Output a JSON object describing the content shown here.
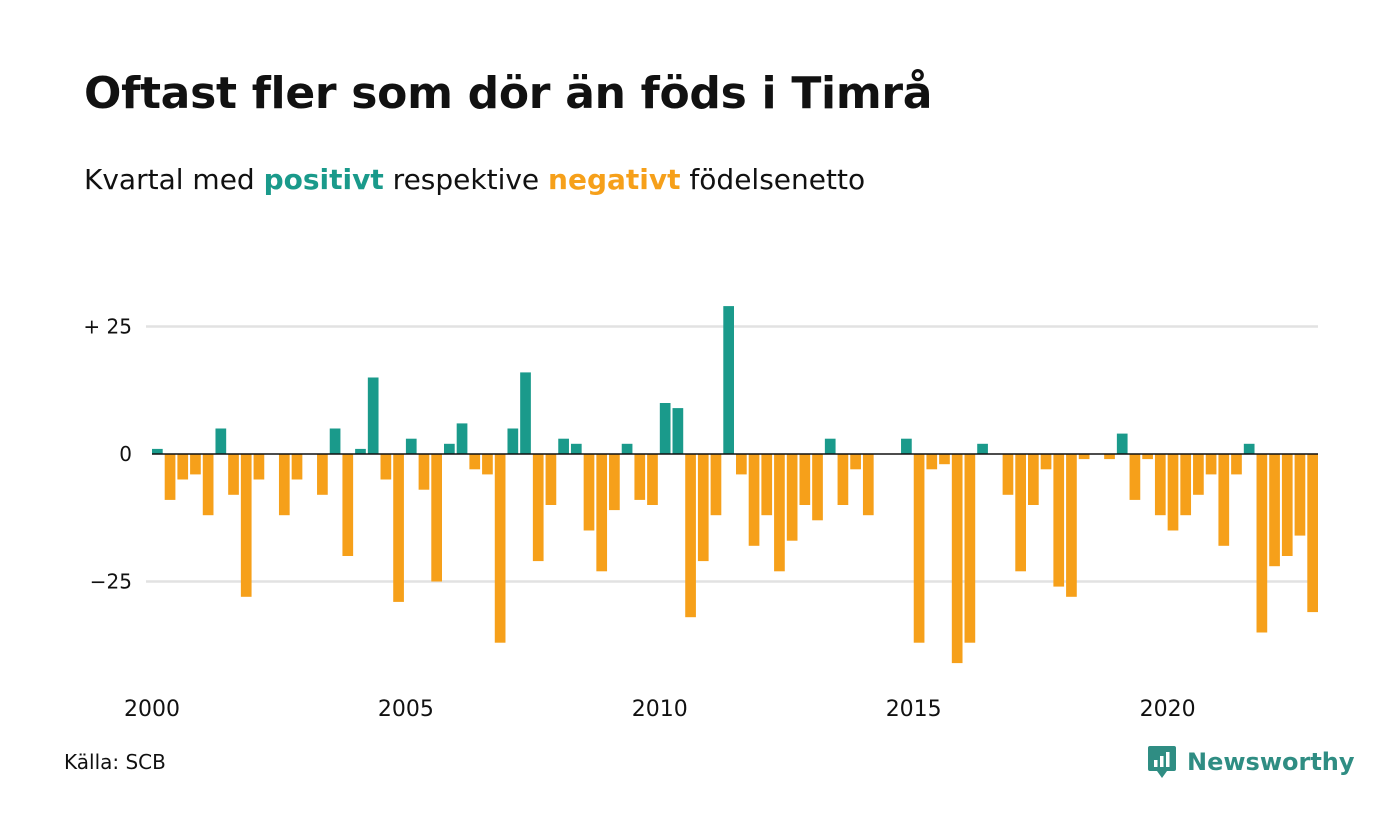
{
  "header": {
    "title": "Oftast fler som dör än föds i Timrå",
    "subtitle_before": "Kvartal med ",
    "subtitle_pos": "positivt",
    "subtitle_mid": " respektive ",
    "subtitle_neg": "negativt",
    "subtitle_after": " födelsenetto"
  },
  "footer": {
    "source": "Källa: SCB",
    "brand": "Newsworthy"
  },
  "colors": {
    "positive": "#1a9a8b",
    "negative": "#f6a01a",
    "grid": "#e2e2e2",
    "brand": "#2f8d83"
  },
  "chart_data": {
    "type": "bar",
    "x_start_year": 2000,
    "period": "quarter",
    "ylim": [
      -42,
      30
    ],
    "y_ticks": [
      {
        "value": 25,
        "label": "+ 25"
      },
      {
        "value": 0,
        "label": "0"
      },
      {
        "value": -25,
        "label": "−25"
      }
    ],
    "x_ticks": [
      "2000",
      "2005",
      "2010",
      "2015",
      "2020"
    ],
    "grid": true,
    "values": [
      1,
      -9,
      -5,
      -4,
      -12,
      5,
      -8,
      -28,
      -5,
      0,
      -12,
      -5,
      0,
      -8,
      5,
      -20,
      1,
      15,
      -5,
      -29,
      3,
      -7,
      -25,
      2,
      6,
      -3,
      -4,
      -37,
      5,
      16,
      -21,
      -10,
      3,
      2,
      -15,
      -23,
      -11,
      2,
      -9,
      -10,
      10,
      9,
      -32,
      -21,
      -12,
      29,
      -4,
      -18,
      -12,
      -23,
      -17,
      -10,
      -13,
      3,
      -10,
      -3,
      -12,
      0,
      0,
      3,
      -37,
      -3,
      -2,
      -41,
      -37,
      2,
      0,
      -8,
      -23,
      -10,
      -3,
      -26,
      -28,
      -1,
      0,
      -1,
      4,
      -9,
      -1,
      -12,
      -15,
      -12,
      -8,
      -4,
      -18,
      -4,
      2,
      -35,
      -22,
      -20,
      -16,
      -31
    ]
  }
}
